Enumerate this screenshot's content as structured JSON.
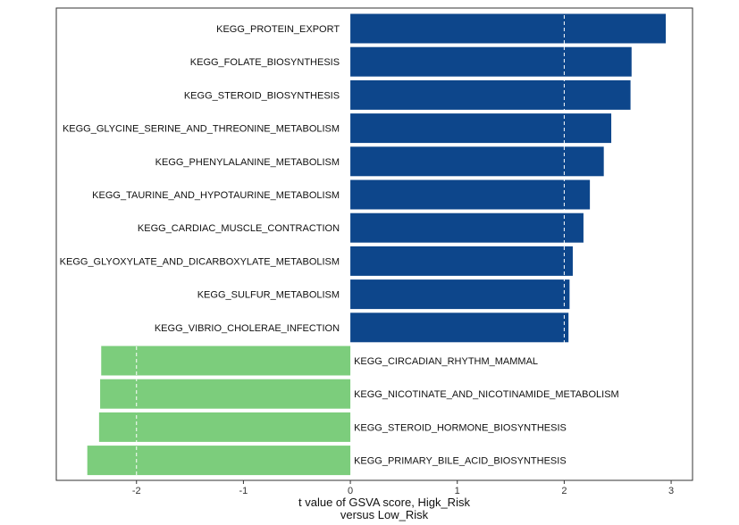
{
  "chart_data": {
    "type": "bar",
    "orientation": "horizontal",
    "xlabel_lines": [
      "t value of GSVA score, Higk_Risk",
      "versus Low_Risk"
    ],
    "xlim": [
      -2.75,
      3.2
    ],
    "xticks": [
      -2,
      -1,
      0,
      1,
      2,
      3
    ],
    "xtick_labels": [
      "-2",
      "-1",
      "0",
      "1",
      "2",
      "3"
    ],
    "reference_lines": [
      -2,
      2
    ],
    "colors": {
      "up": "#0d468b",
      "down": "#7ccd7c",
      "ref_line": "#ffffff"
    },
    "categories": [
      "KEGG_PROTEIN_EXPORT",
      "KEGG_FOLATE_BIOSYNTHESIS",
      "KEGG_STEROID_BIOSYNTHESIS",
      "KEGG_GLYCINE_SERINE_AND_THREONINE_METABOLISM",
      "KEGG_PHENYLALANINE_METABOLISM",
      "KEGG_TAURINE_AND_HYPOTAURINE_METABOLISM",
      "KEGG_CARDIAC_MUSCLE_CONTRACTION",
      "KEGG_GLYOXYLATE_AND_DICARBOXYLATE_METABOLISM",
      "KEGG_SULFUR_METABOLISM",
      "KEGG_VIBRIO_CHOLERAE_INFECTION",
      "KEGG_CIRCADIAN_RHYTHM_MAMMAL",
      "KEGG_NICOTINATE_AND_NICOTINAMIDE_METABOLISM",
      "KEGG_STEROID_HORMONE_BIOSYNTHESIS",
      "KEGG_PRIMARY_BILE_ACID_BIOSYNTHESIS"
    ],
    "values": [
      2.95,
      2.63,
      2.62,
      2.44,
      2.37,
      2.24,
      2.18,
      2.08,
      2.05,
      2.04,
      -2.33,
      -2.34,
      -2.35,
      -2.46
    ]
  }
}
